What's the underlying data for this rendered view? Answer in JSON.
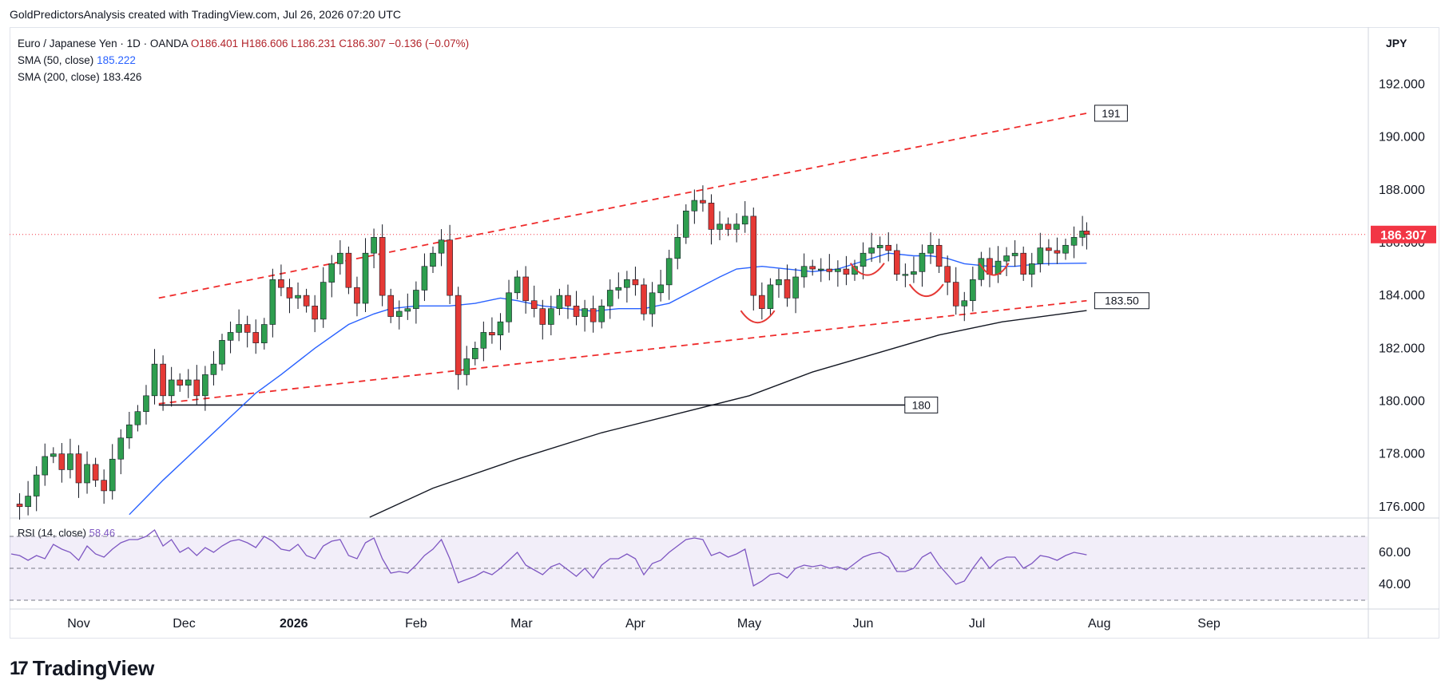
{
  "header": {
    "credit": "GoldPredictorsAnalysis created with TradingView.com, Jul 26, 2026 07:20 UTC"
  },
  "legend": {
    "symbol": "Euro / Japanese Yen · 1D · OANDA",
    "ohlc": "O186.401 H186.606 L186.231 C186.307 −0.136 (−0.07%)",
    "sma50_label": "SMA (50, close)",
    "sma50_value": "185.222",
    "sma200_label": "SMA (200, close)",
    "sma200_value": "183.426"
  },
  "currency": "JPY",
  "rsi_legend": {
    "label": "RSI (14, close)",
    "value": "58.46"
  },
  "footer": {
    "logo_text": "TradingView"
  },
  "colors": {
    "up": "#2e9e4f",
    "down": "#e53935",
    "sma50": "#2962ff",
    "sma200": "#131722",
    "rsi": "#7e57c2",
    "channel": "#ef2b2b",
    "price_tag": "#f23645"
  },
  "chart_data": {
    "type": "candlestick",
    "price_axis": {
      "ylim": [
        175.6,
        194.1
      ],
      "ticks": [
        "192.000",
        "190.000",
        "188.000",
        "186.000",
        "184.000",
        "182.000",
        "180.000",
        "178.000",
        "176.000"
      ]
    },
    "time_axis": {
      "labels": [
        "Nov",
        "Dec",
        "2026",
        "Feb",
        "Mar",
        "Apr",
        "May",
        "Jun",
        "Jul",
        "Aug",
        "Sep"
      ],
      "label_days": [
        16,
        41,
        67,
        96,
        121,
        148,
        175,
        202,
        229,
        258,
        284
      ]
    },
    "current_price": "186.307",
    "closes": [
      [
        0,
        176.1
      ],
      [
        2,
        176.0
      ],
      [
        4,
        176.4
      ],
      [
        6,
        177.2
      ],
      [
        8,
        177.9
      ],
      [
        10,
        178.0
      ],
      [
        12,
        177.4
      ],
      [
        14,
        178.0
      ],
      [
        16,
        176.9
      ],
      [
        18,
        177.6
      ],
      [
        20,
        177.0
      ],
      [
        22,
        176.6
      ],
      [
        24,
        177.8
      ],
      [
        26,
        178.6
      ],
      [
        28,
        179.1
      ],
      [
        30,
        179.6
      ],
      [
        32,
        180.2
      ],
      [
        34,
        181.4
      ],
      [
        36,
        180.2
      ],
      [
        38,
        180.8
      ],
      [
        40,
        180.6
      ],
      [
        42,
        180.8
      ],
      [
        44,
        180.2
      ],
      [
        46,
        181.0
      ],
      [
        48,
        181.4
      ],
      [
        50,
        182.3
      ],
      [
        52,
        182.6
      ],
      [
        54,
        182.9
      ],
      [
        56,
        182.6
      ],
      [
        58,
        182.2
      ],
      [
        60,
        182.9
      ],
      [
        62,
        184.6
      ],
      [
        64,
        184.3
      ],
      [
        66,
        183.9
      ],
      [
        68,
        184.0
      ],
      [
        70,
        183.6
      ],
      [
        72,
        183.1
      ],
      [
        74,
        184.5
      ],
      [
        76,
        185.2
      ],
      [
        78,
        185.6
      ],
      [
        80,
        184.3
      ],
      [
        82,
        183.7
      ],
      [
        84,
        185.6
      ],
      [
        86,
        186.2
      ],
      [
        88,
        184.0
      ],
      [
        90,
        183.2
      ],
      [
        92,
        183.4
      ],
      [
        94,
        183.5
      ],
      [
        96,
        184.2
      ],
      [
        98,
        185.1
      ],
      [
        100,
        185.6
      ],
      [
        102,
        186.1
      ],
      [
        104,
        184.0
      ],
      [
        106,
        181.0
      ],
      [
        108,
        181.6
      ],
      [
        110,
        182.0
      ],
      [
        112,
        182.6
      ],
      [
        114,
        182.5
      ],
      [
        116,
        183.0
      ],
      [
        118,
        184.1
      ],
      [
        120,
        184.7
      ],
      [
        122,
        183.8
      ],
      [
        124,
        183.5
      ],
      [
        126,
        182.9
      ],
      [
        128,
        183.5
      ],
      [
        130,
        184.0
      ],
      [
        132,
        183.6
      ],
      [
        134,
        183.2
      ],
      [
        136,
        183.5
      ],
      [
        138,
        183.0
      ],
      [
        140,
        183.6
      ],
      [
        142,
        184.2
      ],
      [
        144,
        184.3
      ],
      [
        146,
        184.6
      ],
      [
        148,
        184.4
      ],
      [
        150,
        183.3
      ],
      [
        152,
        184.1
      ],
      [
        154,
        184.4
      ],
      [
        156,
        185.4
      ],
      [
        158,
        186.2
      ],
      [
        160,
        187.2
      ],
      [
        162,
        187.6
      ],
      [
        164,
        187.5
      ],
      [
        166,
        186.5
      ],
      [
        168,
        186.7
      ],
      [
        170,
        186.5
      ],
      [
        172,
        186.7
      ],
      [
        174,
        187.0
      ],
      [
        176,
        184.0
      ],
      [
        178,
        183.5
      ],
      [
        180,
        184.4
      ],
      [
        182,
        184.6
      ],
      [
        184,
        183.9
      ],
      [
        186,
        184.7
      ],
      [
        188,
        185.1
      ],
      [
        190,
        185.0
      ],
      [
        192,
        185.0
      ],
      [
        194,
        184.9
      ],
      [
        196,
        185.0
      ],
      [
        198,
        184.8
      ],
      [
        200,
        185.1
      ],
      [
        202,
        185.6
      ],
      [
        204,
        185.8
      ],
      [
        206,
        185.9
      ],
      [
        208,
        185.7
      ],
      [
        210,
        184.8
      ],
      [
        212,
        184.8
      ],
      [
        214,
        184.9
      ],
      [
        216,
        185.6
      ],
      [
        218,
        185.9
      ],
      [
        220,
        185.1
      ],
      [
        222,
        184.5
      ],
      [
        224,
        183.6
      ],
      [
        226,
        183.8
      ],
      [
        228,
        184.6
      ],
      [
        230,
        185.4
      ],
      [
        232,
        184.8
      ],
      [
        234,
        185.3
      ],
      [
        236,
        185.5
      ],
      [
        238,
        185.6
      ],
      [
        240,
        184.8
      ],
      [
        242,
        185.2
      ],
      [
        244,
        185.8
      ],
      [
        246,
        185.7
      ],
      [
        248,
        185.6
      ],
      [
        250,
        185.9
      ],
      [
        252,
        186.2
      ],
      [
        254,
        186.44
      ],
      [
        255,
        186.31
      ]
    ],
    "sma50": [
      [
        28,
        175.7
      ],
      [
        36,
        177.0
      ],
      [
        44,
        178.2
      ],
      [
        52,
        179.4
      ],
      [
        58,
        180.3
      ],
      [
        64,
        181.0
      ],
      [
        72,
        182.0
      ],
      [
        80,
        182.9
      ],
      [
        86,
        183.3
      ],
      [
        90,
        183.5
      ],
      [
        96,
        183.6
      ],
      [
        104,
        183.6
      ],
      [
        110,
        183.7
      ],
      [
        116,
        183.9
      ],
      [
        120,
        183.8
      ],
      [
        126,
        183.6
      ],
      [
        132,
        183.5
      ],
      [
        138,
        183.4
      ],
      [
        144,
        183.5
      ],
      [
        150,
        183.5
      ],
      [
        156,
        183.7
      ],
      [
        162,
        184.2
      ],
      [
        168,
        184.7
      ],
      [
        172,
        185.0
      ],
      [
        178,
        185.1
      ],
      [
        184,
        185.0
      ],
      [
        190,
        184.9
      ],
      [
        196,
        185.0
      ],
      [
        202,
        185.3
      ],
      [
        208,
        185.6
      ],
      [
        214,
        185.5
      ],
      [
        218,
        185.5
      ],
      [
        222,
        185.4
      ],
      [
        226,
        185.2
      ],
      [
        232,
        185.1
      ],
      [
        238,
        185.1
      ],
      [
        244,
        185.2
      ],
      [
        255,
        185.222
      ]
    ],
    "sma200": [
      [
        85,
        175.6
      ],
      [
        100,
        176.7
      ],
      [
        120,
        177.8
      ],
      [
        140,
        178.8
      ],
      [
        160,
        179.6
      ],
      [
        175,
        180.2
      ],
      [
        190,
        181.1
      ],
      [
        205,
        181.8
      ],
      [
        220,
        182.5
      ],
      [
        235,
        183.0
      ],
      [
        255,
        183.426
      ]
    ],
    "rsi": {
      "ylim": [
        25,
        80
      ],
      "ticks": [
        "60.00",
        "40.00"
      ],
      "levels": [
        70,
        50,
        30
      ],
      "values": [
        [
          0,
          59
        ],
        [
          2,
          58
        ],
        [
          4,
          55
        ],
        [
          6,
          58
        ],
        [
          8,
          56
        ],
        [
          10,
          65
        ],
        [
          12,
          62
        ],
        [
          14,
          60
        ],
        [
          16,
          55
        ],
        [
          18,
          64
        ],
        [
          20,
          59
        ],
        [
          22,
          57
        ],
        [
          24,
          62
        ],
        [
          26,
          66
        ],
        [
          28,
          68
        ],
        [
          30,
          68
        ],
        [
          32,
          70
        ],
        [
          34,
          74
        ],
        [
          36,
          64
        ],
        [
          38,
          68
        ],
        [
          40,
          60
        ],
        [
          42,
          63
        ],
        [
          44,
          58
        ],
        [
          46,
          63
        ],
        [
          48,
          60
        ],
        [
          50,
          64
        ],
        [
          52,
          67
        ],
        [
          54,
          68
        ],
        [
          56,
          66
        ],
        [
          58,
          63
        ],
        [
          60,
          70
        ],
        [
          62,
          67
        ],
        [
          64,
          62
        ],
        [
          66,
          61
        ],
        [
          68,
          65
        ],
        [
          70,
          58
        ],
        [
          72,
          56
        ],
        [
          74,
          64
        ],
        [
          76,
          67
        ],
        [
          78,
          68
        ],
        [
          80,
          58
        ],
        [
          82,
          56
        ],
        [
          84,
          66
        ],
        [
          86,
          69
        ],
        [
          88,
          56
        ],
        [
          90,
          47
        ],
        [
          92,
          48
        ],
        [
          94,
          47
        ],
        [
          96,
          52
        ],
        [
          98,
          58
        ],
        [
          100,
          62
        ],
        [
          102,
          68
        ],
        [
          104,
          56
        ],
        [
          106,
          41
        ],
        [
          108,
          43
        ],
        [
          110,
          45
        ],
        [
          112,
          48
        ],
        [
          114,
          46
        ],
        [
          116,
          50
        ],
        [
          118,
          55
        ],
        [
          120,
          60
        ],
        [
          122,
          52
        ],
        [
          124,
          49
        ],
        [
          126,
          46
        ],
        [
          128,
          51
        ],
        [
          130,
          53
        ],
        [
          132,
          49
        ],
        [
          134,
          45
        ],
        [
          136,
          50
        ],
        [
          138,
          44
        ],
        [
          140,
          52
        ],
        [
          142,
          56
        ],
        [
          144,
          56
        ],
        [
          146,
          59
        ],
        [
          148,
          56
        ],
        [
          150,
          46
        ],
        [
          152,
          53
        ],
        [
          154,
          55
        ],
        [
          156,
          60
        ],
        [
          158,
          64
        ],
        [
          160,
          68
        ],
        [
          162,
          69
        ],
        [
          164,
          68
        ],
        [
          166,
          58
        ],
        [
          168,
          60
        ],
        [
          170,
          57
        ],
        [
          172,
          59
        ],
        [
          174,
          62
        ],
        [
          176,
          39
        ],
        [
          178,
          42
        ],
        [
          180,
          46
        ],
        [
          182,
          47
        ],
        [
          184,
          44
        ],
        [
          186,
          50
        ],
        [
          188,
          52
        ],
        [
          190,
          51
        ],
        [
          192,
          52
        ],
        [
          194,
          50
        ],
        [
          196,
          51
        ],
        [
          198,
          49
        ],
        [
          200,
          53
        ],
        [
          202,
          57
        ],
        [
          204,
          59
        ],
        [
          206,
          60
        ],
        [
          208,
          57
        ],
        [
          210,
          48
        ],
        [
          212,
          48
        ],
        [
          214,
          50
        ],
        [
          216,
          57
        ],
        [
          218,
          60
        ],
        [
          220,
          52
        ],
        [
          222,
          46
        ],
        [
          224,
          40
        ],
        [
          226,
          42
        ],
        [
          228,
          50
        ],
        [
          230,
          57
        ],
        [
          232,
          50
        ],
        [
          234,
          55
        ],
        [
          236,
          57
        ],
        [
          238,
          57
        ],
        [
          240,
          50
        ],
        [
          242,
          53
        ],
        [
          244,
          58
        ],
        [
          246,
          57
        ],
        [
          248,
          55
        ],
        [
          250,
          58
        ],
        [
          252,
          60
        ],
        [
          254,
          59
        ],
        [
          255,
          58.46
        ]
      ]
    },
    "annotations": [
      {
        "kind": "channel-upper",
        "from": [
          35,
          183.9
        ],
        "to": [
          255,
          190.9
        ],
        "style": "dashed"
      },
      {
        "kind": "channel-lower",
        "from": [
          35,
          179.9
        ],
        "to": [
          255,
          183.8
        ],
        "style": "dashed"
      },
      {
        "kind": "support",
        "from": [
          35,
          179.85
        ],
        "to": [
          212,
          179.85
        ],
        "style": "solid",
        "label": "180"
      },
      {
        "kind": "target",
        "at": [
          255,
          190.9
        ],
        "label": "191"
      },
      {
        "kind": "level",
        "at": [
          255,
          183.8
        ],
        "label": "183.50"
      },
      {
        "kind": "arc",
        "center": [
          177,
          183.0
        ],
        "half_width": 4
      },
      {
        "kind": "arc",
        "center": [
          203,
          184.8
        ],
        "half_width": 4
      },
      {
        "kind": "arc",
        "center": [
          217,
          184.0
        ],
        "half_width": 4
      },
      {
        "kind": "arc",
        "center": [
          233,
          184.8
        ],
        "half_width": 3.5
      }
    ]
  }
}
